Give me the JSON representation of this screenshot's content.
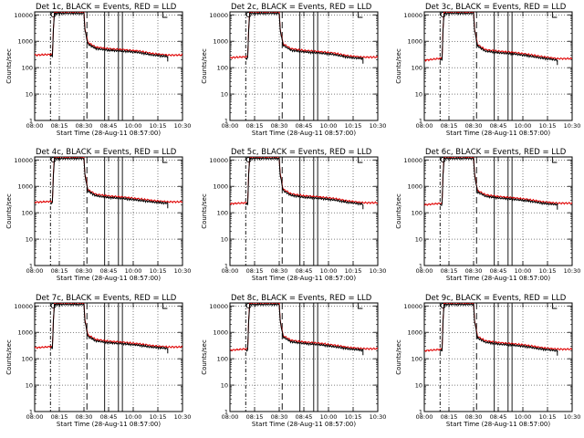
{
  "chart_data": {
    "type": "line",
    "x_tick_labels": [
      "08:00",
      "08:15",
      "08:30",
      "08:45",
      "10:00",
      "10:15",
      "10:30"
    ],
    "y_tick_labels": [
      "1",
      "10",
      "100",
      "1000",
      "10000"
    ],
    "y_scale": "log",
    "ylim": [
      1,
      13000
    ],
    "x_domain": [
      0,
      150
    ],
    "ylabel": "Counts/sec",
    "xlabel": "Start Time (28-Aug-11 08:57:00)",
    "grid": true,
    "legend_text": "BLACK = Events, RED = LLD",
    "series_colors": {
      "events": "#000000",
      "lld": "#e00000"
    },
    "markers": {
      "dash_dot_x": 16,
      "long_dash_x": 53,
      "solid_x": [
        71,
        85,
        89
      ],
      "circle_marker_x": 19,
      "corner_marker_x": 130
    },
    "x_range_events": [
      16,
      135
    ],
    "x_range_lld": [
      0,
      150
    ],
    "panels": [
      {
        "title": "Det 1c",
        "shape": [
          [
            0,
            300
          ],
          [
            18,
            320
          ],
          [
            19,
            3000
          ],
          [
            20,
            13000
          ],
          [
            50,
            13000
          ],
          [
            51,
            3000
          ],
          [
            54,
            900
          ],
          [
            62,
            600
          ],
          [
            75,
            520
          ],
          [
            90,
            480
          ],
          [
            105,
            430
          ],
          [
            120,
            340
          ],
          [
            135,
            300
          ],
          [
            150,
            300
          ]
        ]
      },
      {
        "title": "Det 2c",
        "shape": [
          [
            0,
            240
          ],
          [
            18,
            260
          ],
          [
            19,
            3000
          ],
          [
            20,
            13000
          ],
          [
            50,
            13000
          ],
          [
            51,
            3000
          ],
          [
            54,
            800
          ],
          [
            62,
            520
          ],
          [
            75,
            450
          ],
          [
            90,
            410
          ],
          [
            105,
            360
          ],
          [
            120,
            280
          ],
          [
            135,
            250
          ],
          [
            150,
            250
          ]
        ]
      },
      {
        "title": "Det 3c",
        "shape": [
          [
            0,
            190
          ],
          [
            18,
            230
          ],
          [
            19,
            3000
          ],
          [
            20,
            13000
          ],
          [
            50,
            13000
          ],
          [
            51,
            3000
          ],
          [
            54,
            750
          ],
          [
            62,
            480
          ],
          [
            75,
            420
          ],
          [
            90,
            380
          ],
          [
            105,
            320
          ],
          [
            120,
            260
          ],
          [
            135,
            220
          ],
          [
            150,
            220
          ]
        ]
      },
      {
        "title": "Det 4c",
        "shape": [
          [
            0,
            250
          ],
          [
            18,
            270
          ],
          [
            19,
            3000
          ],
          [
            20,
            13000
          ],
          [
            50,
            13000
          ],
          [
            51,
            3000
          ],
          [
            54,
            750
          ],
          [
            62,
            500
          ],
          [
            75,
            430
          ],
          [
            90,
            390
          ],
          [
            105,
            340
          ],
          [
            120,
            290
          ],
          [
            135,
            260
          ],
          [
            150,
            260
          ]
        ]
      },
      {
        "title": "Det 5c",
        "shape": [
          [
            0,
            220
          ],
          [
            18,
            240
          ],
          [
            19,
            3000
          ],
          [
            20,
            13000
          ],
          [
            50,
            13000
          ],
          [
            51,
            3000
          ],
          [
            54,
            780
          ],
          [
            62,
            520
          ],
          [
            75,
            440
          ],
          [
            90,
            400
          ],
          [
            105,
            350
          ],
          [
            120,
            280
          ],
          [
            135,
            240
          ],
          [
            150,
            240
          ]
        ]
      },
      {
        "title": "Det 6c",
        "shape": [
          [
            0,
            200
          ],
          [
            18,
            230
          ],
          [
            19,
            3000
          ],
          [
            20,
            13000
          ],
          [
            50,
            13000
          ],
          [
            51,
            3000
          ],
          [
            54,
            700
          ],
          [
            62,
            480
          ],
          [
            75,
            410
          ],
          [
            90,
            370
          ],
          [
            105,
            320
          ],
          [
            120,
            260
          ],
          [
            135,
            230
          ],
          [
            150,
            230
          ]
        ]
      },
      {
        "title": "Det 7c",
        "shape": [
          [
            0,
            260
          ],
          [
            18,
            290
          ],
          [
            19,
            3000
          ],
          [
            20,
            13000
          ],
          [
            50,
            13000
          ],
          [
            51,
            3000
          ],
          [
            54,
            800
          ],
          [
            62,
            540
          ],
          [
            75,
            460
          ],
          [
            90,
            420
          ],
          [
            105,
            370
          ],
          [
            120,
            310
          ],
          [
            135,
            280
          ],
          [
            150,
            280
          ]
        ]
      },
      {
        "title": "Det 8c",
        "shape": [
          [
            0,
            210
          ],
          [
            18,
            240
          ],
          [
            19,
            3000
          ],
          [
            20,
            13000
          ],
          [
            50,
            13000
          ],
          [
            51,
            3000
          ],
          [
            54,
            750
          ],
          [
            62,
            500
          ],
          [
            75,
            430
          ],
          [
            90,
            390
          ],
          [
            105,
            330
          ],
          [
            120,
            270
          ],
          [
            135,
            240
          ],
          [
            150,
            240
          ]
        ]
      },
      {
        "title": "Det 9c",
        "shape": [
          [
            0,
            200
          ],
          [
            18,
            230
          ],
          [
            19,
            3000
          ],
          [
            20,
            13000
          ],
          [
            50,
            13000
          ],
          [
            51,
            3000
          ],
          [
            54,
            700
          ],
          [
            62,
            480
          ],
          [
            75,
            410
          ],
          [
            90,
            370
          ],
          [
            105,
            320
          ],
          [
            120,
            260
          ],
          [
            135,
            230
          ],
          [
            150,
            230
          ]
        ]
      }
    ]
  }
}
